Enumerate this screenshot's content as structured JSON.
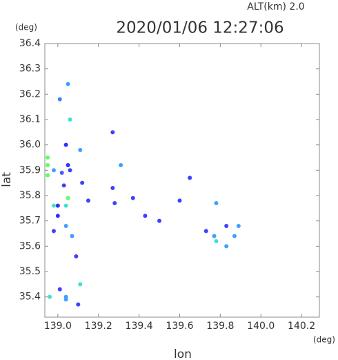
{
  "chart_data": {
    "type": "scatter",
    "title": "2020/01/06 12:27:06",
    "subtitle": "ALT(km) 2.0",
    "x_label": "lon",
    "y_label": "lat",
    "x_unit": "(deg)",
    "y_unit": "(deg)",
    "xlim": [
      138.936,
      140.288
    ],
    "ylim": [
      35.32,
      36.4
    ],
    "xticks": [
      {
        "value": 139,
        "label": "139.0"
      },
      139.2,
      139.4,
      139.6,
      139.8,
      {
        "value": 140,
        "label": "140.0"
      },
      140.2
    ],
    "yticks": [
      35.4,
      35.5,
      35.6,
      35.7,
      35.8,
      35.9,
      {
        "value": 36,
        "label": "36.0"
      },
      36.1,
      36.2,
      36.3,
      36.4
    ],
    "series": [
      {
        "x": [
          139.05,
          139.01,
          139.06,
          139.04,
          139.11,
          138.95,
          138.95,
          139.05,
          139.02,
          139.06,
          138.95,
          138.98,
          139.03,
          139.12,
          139.27,
          139.31,
          139.27,
          139.28,
          139.37,
          139.65,
          139.6,
          139.05,
          139.04,
          139.0,
          138.98,
          139.0,
          139.04,
          138.98,
          139.07,
          139.15,
          139.78,
          139.73,
          139.77,
          139.78,
          139.83,
          139.89,
          139.87,
          139.83,
          139.43,
          139.5,
          139.11,
          139.01,
          139.04,
          139.04,
          138.96,
          139.1,
          139.09
        ],
        "values": [
          36.24,
          36.18,
          36.1,
          36.0,
          35.98,
          35.95,
          35.92,
          35.92,
          35.89,
          35.9,
          35.88,
          35.9,
          35.84,
          35.85,
          36.05,
          35.92,
          35.83,
          35.77,
          35.79,
          35.87,
          35.78,
          35.79,
          35.76,
          35.76,
          35.76,
          35.72,
          35.68,
          35.66,
          35.64,
          35.78,
          35.77,
          35.66,
          35.64,
          35.62,
          35.68,
          35.68,
          35.64,
          35.6,
          35.72,
          35.7,
          35.45,
          35.43,
          35.4,
          35.39,
          35.4,
          35.37,
          35.56
        ],
        "colors": [
          "#40a0ff",
          "#4080ff",
          "#40e0d0",
          "#3030ff",
          "#40a0ff",
          "#60ff60",
          "#60ff60",
          "#3030ff",
          "#4060ff",
          "#4040ff",
          "#60ff60",
          "#40a0ff",
          "#4040ff",
          "#4040ff",
          "#4040ff",
          "#40a0ff",
          "#4040ff",
          "#4040ff",
          "#4040ff",
          "#4040ff",
          "#4040ff",
          "#60ff60",
          "#40e0d0",
          "#3030ff",
          "#40e0d0",
          "#3030ff",
          "#40a0ff",
          "#4040ff",
          "#40a0ff",
          "#4040ff",
          "#40a0ff",
          "#4040ff",
          "#40a0ff",
          "#40e0d0",
          "#4040ff",
          "#40a0ff",
          "#40a0ff",
          "#40a0ff",
          "#4040ff",
          "#4040ff",
          "#40e0d0",
          "#4040ff",
          "#40a0ff",
          "#40a0ff",
          "#40e0d0",
          "#4040ff",
          "#4040ff"
        ]
      }
    ]
  }
}
